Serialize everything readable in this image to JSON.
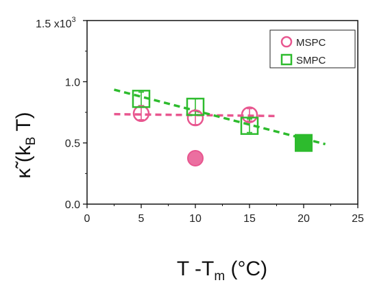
{
  "chart_data": {
    "type": "scatter",
    "xlabel": {
      "main": "T -T",
      "sub": "m",
      "unit": " (°C)"
    },
    "ylabel": {
      "main": "κ̃ (k",
      "sub": "B",
      "unit": " T)"
    },
    "x_ticks": [
      "0",
      "5",
      "10",
      "15",
      "20",
      "25"
    ],
    "y_ticks": [
      "0.0",
      "0.5",
      "1.0"
    ],
    "y_multiplier": {
      "base": "1.5 x10",
      "exp": "3"
    },
    "xlim": [
      0,
      25
    ],
    "ylim": [
      0,
      1500
    ],
    "legend": {
      "placement": "top-right",
      "entries": [
        "MSPC",
        "SMPC"
      ]
    },
    "colors": {
      "MSPC": "#e8568f",
      "SMPC": "#2dbb2d"
    },
    "series": [
      {
        "name": "MSPC",
        "marker": "open-circle",
        "points": [
          {
            "x": 5,
            "y": 740,
            "err": 50
          },
          {
            "x": 10,
            "y": 705,
            "err": 55
          },
          {
            "x": 15,
            "y": 730,
            "err": 50
          }
        ]
      },
      {
        "name": "SMPC",
        "marker": "open-square",
        "points": [
          {
            "x": 5,
            "y": 860,
            "err": 55
          },
          {
            "x": 10,
            "y": 795,
            "err": 65
          },
          {
            "x": 15,
            "y": 640,
            "err": 55
          }
        ]
      }
    ],
    "extra_points": [
      {
        "series": "MSPC",
        "marker": "filled-circle",
        "x": 10,
        "y": 375
      },
      {
        "series": "SMPC",
        "marker": "filled-square",
        "x": 20,
        "y": 500
      }
    ],
    "fit_lines": [
      {
        "series": "MSPC",
        "style": "dashed",
        "from": {
          "x": 2.5,
          "y": 735
        },
        "to": {
          "x": 17.5,
          "y": 720
        }
      },
      {
        "series": "SMPC",
        "style": "dashed",
        "from": {
          "x": 2.5,
          "y": 935
        },
        "to": {
          "x": 22,
          "y": 490
        }
      }
    ]
  }
}
